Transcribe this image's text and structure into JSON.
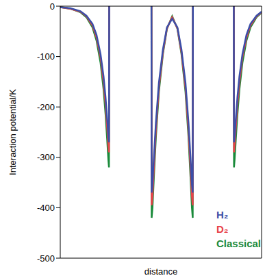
{
  "chart_data": {
    "type": "line",
    "xlabel": "distance",
    "ylabel": "Interaction potential/K",
    "xlim": [
      0,
      100
    ],
    "ylim": [
      -500,
      0
    ],
    "yticks": [
      -500,
      -400,
      -300,
      -200,
      -100,
      0
    ],
    "tick_labels": "y",
    "grid": false,
    "legend": "lower right",
    "x": [
      0,
      5,
      10,
      13,
      16,
      18,
      20,
      21.5,
      22.5,
      23.3,
      23.9,
      24.2,
      24.3,
      35,
      45.3,
      45.4,
      45.8,
      46.5,
      47.5,
      49,
      51,
      53,
      55.6,
      58.2,
      60.2,
      62.2,
      63.7,
      64.7,
      65.4,
      65.8,
      65.9,
      76,
      86.2,
      86.3,
      86.6,
      87.2,
      88,
      89,
      90.5,
      92.5,
      94.5,
      97.5,
      100
    ],
    "series": [
      {
        "name": "H₂",
        "color": "#3b4fa8",
        "values": [
          -2,
          -4,
          -10,
          -19,
          -35,
          -57,
          -95,
          -139,
          -181,
          -224,
          -257,
          -270,
          0,
          null,
          0,
          -370,
          -353,
          -301,
          -231,
          -152,
          -86,
          -42,
          -25,
          -42,
          -86,
          -152,
          -231,
          -301,
          -353,
          -370,
          0,
          null,
          0,
          -270,
          -257,
          -224,
          -181,
          -139,
          -95,
          -57,
          -35,
          -19,
          -11
        ]
      },
      {
        "name": "D₂",
        "color": "#e8424a",
        "values": [
          -2,
          -5,
          -11,
          -20,
          -38,
          -62,
          -101,
          -150,
          -195,
          -240,
          -276,
          -290,
          0,
          null,
          0,
          -395,
          -377,
          -321,
          -246,
          -161,
          -91,
          -44,
          -22,
          -44,
          -91,
          -161,
          -246,
          -321,
          -377,
          -395,
          0,
          null,
          0,
          -290,
          -276,
          -240,
          -195,
          -150,
          -101,
          -62,
          -38,
          -20,
          -12
        ]
      },
      {
        "name": "Classical",
        "color": "#1a8a3a",
        "values": [
          -2,
          -5,
          -12,
          -22,
          -42,
          -68,
          -112,
          -165,
          -215,
          -265,
          -305,
          -320,
          0,
          null,
          0,
          -420,
          -400,
          -340,
          -260,
          -170,
          -95,
          -45,
          -20,
          -45,
          -95,
          -170,
          -260,
          -340,
          -400,
          -420,
          0,
          null,
          0,
          -320,
          -305,
          -265,
          -215,
          -165,
          -112,
          -68,
          -42,
          -22,
          -13
        ]
      }
    ]
  }
}
